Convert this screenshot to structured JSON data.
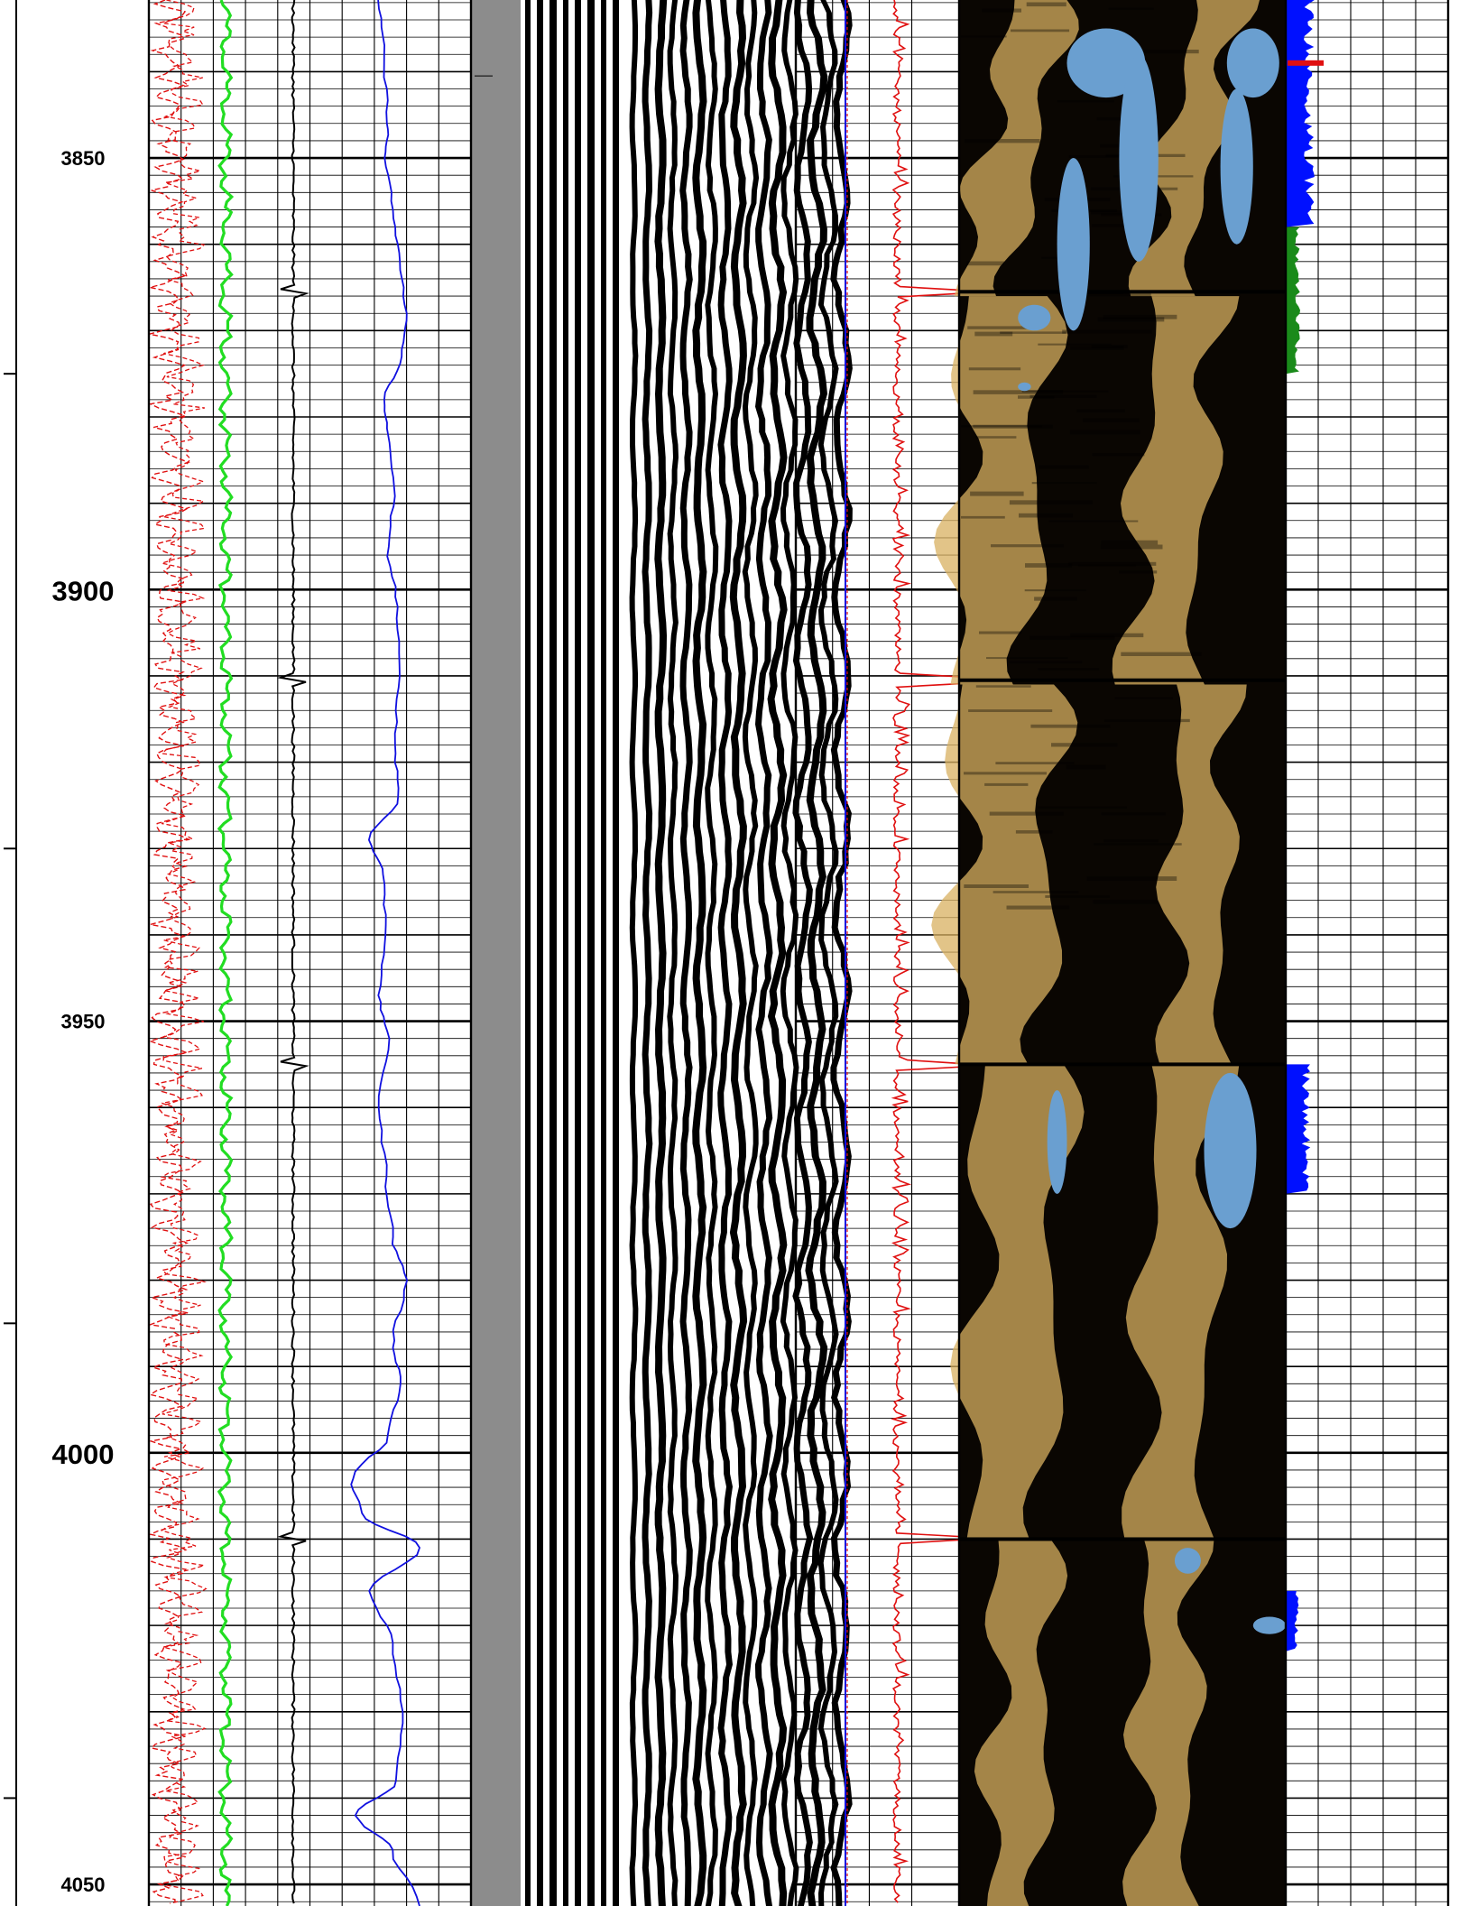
{
  "chart_data": {
    "type": "well-log",
    "depth_axis": {
      "range": [
        3831.7,
        4052.5
      ],
      "minor_step": 2,
      "medium_step": 10,
      "major_step": 50,
      "labels": [
        {
          "depth": 3850,
          "text": "3850",
          "size": "small"
        },
        {
          "depth": 3900,
          "text": "3900",
          "size": "large"
        },
        {
          "depth": 3950,
          "text": "3950",
          "size": "small"
        },
        {
          "depth": 4000,
          "text": "4000",
          "size": "large"
        },
        {
          "depth": 4050,
          "text": "4050",
          "size": "small"
        }
      ],
      "side_ticks": [
        3875,
        3930,
        3985,
        4040
      ]
    },
    "tracks": [
      {
        "name": "track-1-curves",
        "grid": true
      },
      {
        "name": "track-2-variable-density",
        "grid": false
      },
      {
        "name": "track-3-curves",
        "grid": true
      },
      {
        "name": "track-4-image",
        "grid": false
      },
      {
        "name": "track-5-curves",
        "grid": true
      }
    ],
    "colors": {
      "red_curve": "#e01010",
      "green_curve": "#22dd22",
      "black_curve": "#000000",
      "blue_curve": "#1010e0",
      "image_dark": "#0a0602",
      "image_gold": "#d8b060",
      "image_blue": "#6a9fd0",
      "flag_blue": "#0010ff",
      "flag_green": "#1a8a1a"
    },
    "event_depths": [
      3865.5,
      3910.5,
      3955.0,
      4010.0
    ],
    "blue_curve_points": [
      [
        3831.7,
        0.4
      ],
      [
        3838,
        0.45
      ],
      [
        3846,
        0.5
      ],
      [
        3850,
        0.47
      ],
      [
        3856,
        0.55
      ],
      [
        3862,
        0.63
      ],
      [
        3868,
        0.7
      ],
      [
        3873,
        0.66
      ],
      [
        3878,
        0.45
      ],
      [
        3882,
        0.5
      ],
      [
        3888,
        0.57
      ],
      [
        3895,
        0.5
      ],
      [
        3902,
        0.6
      ],
      [
        3910,
        0.62
      ],
      [
        3918,
        0.58
      ],
      [
        3924,
        0.62
      ],
      [
        3929,
        0.3
      ],
      [
        3933,
        0.45
      ],
      [
        3940,
        0.48
      ],
      [
        3947,
        0.4
      ],
      [
        3952,
        0.5
      ],
      [
        3960,
        0.4
      ],
      [
        3968,
        0.48
      ],
      [
        3975,
        0.55
      ],
      [
        3980,
        0.7
      ],
      [
        3987,
        0.56
      ],
      [
        3992,
        0.64
      ],
      [
        3998,
        0.5
      ],
      [
        4003,
        0.1
      ],
      [
        4007,
        0.2
      ],
      [
        4011,
        0.85
      ],
      [
        4016,
        0.3
      ],
      [
        4022,
        0.55
      ],
      [
        4030,
        0.66
      ],
      [
        4038,
        0.6
      ],
      [
        4042,
        0.15
      ],
      [
        4046,
        0.55
      ],
      [
        4052.5,
        0.85
      ]
    ]
  }
}
